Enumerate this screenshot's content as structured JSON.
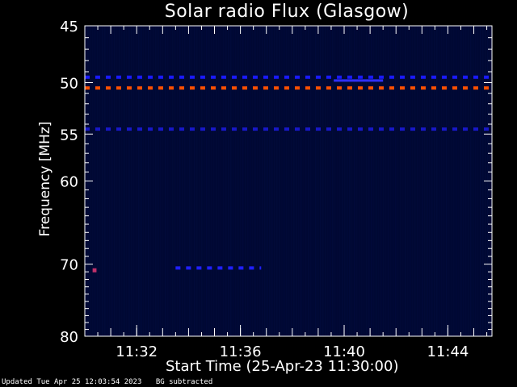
{
  "chart_data": {
    "type": "heatmap",
    "title": "Solar radio Flux (Glasgow)",
    "xlabel": "Start Time (25-Apr-23 11:30:00)",
    "ylabel": "Frequency [MHz]",
    "x_range_minutes": [
      0,
      15.7
    ],
    "x_ticks": [
      {
        "minute": 2,
        "label": "11:32"
      },
      {
        "minute": 6,
        "label": "11:36"
      },
      {
        "minute": 10,
        "label": "11:40"
      },
      {
        "minute": 14,
        "label": "11:44"
      }
    ],
    "y_range_mhz": [
      45,
      80
    ],
    "y_scale": "log",
    "y_ticks": [
      45,
      50,
      55,
      60,
      70,
      80
    ],
    "background_color": "#000833",
    "features": [
      {
        "kind": "dashed",
        "freq_mhz": 49.5,
        "minute_start": 0,
        "minute_end": 15.7,
        "color": "#1a1aff"
      },
      {
        "kind": "solid",
        "freq_mhz": 49.8,
        "minute_start": 9.6,
        "minute_end": 11.5,
        "color": "#3030ff"
      },
      {
        "kind": "dashed",
        "freq_mhz": 50.5,
        "minute_start": 0,
        "minute_end": 15.7,
        "color": "#ff5000"
      },
      {
        "kind": "dashed",
        "freq_mhz": 54.5,
        "minute_start": 0,
        "minute_end": 15.7,
        "color": "#1818c8"
      },
      {
        "kind": "dashed",
        "freq_mhz": 70.5,
        "minute_start": 3.5,
        "minute_end": 6.8,
        "color": "#2020ff"
      },
      {
        "kind": "point",
        "freq_mhz": 70.8,
        "minute_start": 0.3,
        "minute_end": 0.45,
        "color": "#c0306a"
      }
    ]
  },
  "footer": {
    "updated": "Updated Tue Apr 25 12:03:54 2023",
    "note": "BG subtracted"
  }
}
